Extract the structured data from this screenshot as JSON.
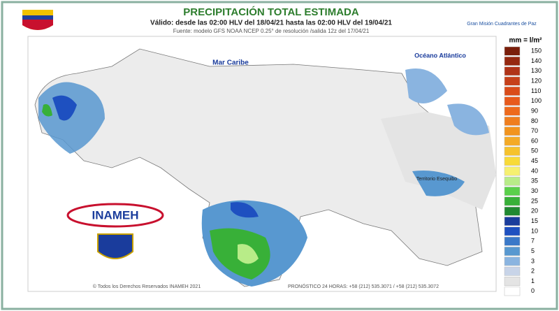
{
  "header": {
    "title": "PRECIPITACIÓN TOTAL ESTIMADA",
    "subtitle": "Válido: desde las 02:00 HLV del 18/04/21 hasta las 02:00 HLV del 19/04/21",
    "source": "Fuente: modelo GFS NOAA  NCEP 0.25° de resolución /salida 12z del 17/04/21",
    "partner": "Gran Misión Cuadrantes de Paz"
  },
  "map": {
    "labels": [
      "Mar Caribe",
      "Océano Atlántico",
      "Territorio Esequibo"
    ],
    "logo": "INAMEH"
  },
  "legend": {
    "title": "mm = l/m²",
    "items": [
      {
        "value": 150,
        "color": "#7a1e0a"
      },
      {
        "value": 140,
        "color": "#952810"
      },
      {
        "value": 130,
        "color": "#b03318"
      },
      {
        "value": 120,
        "color": "#c6401a"
      },
      {
        "value": 110,
        "color": "#da4c1a"
      },
      {
        "value": 100,
        "color": "#e85a1c"
      },
      {
        "value": 90,
        "color": "#ee6a1c"
      },
      {
        "value": 80,
        "color": "#f07e1e"
      },
      {
        "value": 70,
        "color": "#f2941e"
      },
      {
        "value": 60,
        "color": "#f4aa26"
      },
      {
        "value": 50,
        "color": "#f6c22c"
      },
      {
        "value": 45,
        "color": "#f8da38"
      },
      {
        "value": 40,
        "color": "#f6f070"
      },
      {
        "value": 35,
        "color": "#b8ec88"
      },
      {
        "value": 30,
        "color": "#5ad04a"
      },
      {
        "value": 25,
        "color": "#38b038"
      },
      {
        "value": 20,
        "color": "#208830"
      },
      {
        "value": 15,
        "color": "#1a3c9c"
      },
      {
        "value": 10,
        "color": "#1e50c0"
      },
      {
        "value": 7,
        "color": "#3a78c8"
      },
      {
        "value": 5,
        "color": "#5898d0"
      },
      {
        "value": 3,
        "color": "#8ab4e0"
      },
      {
        "value": 2,
        "color": "#c8d4e8"
      },
      {
        "value": 1,
        "color": "#e4e4e4"
      },
      {
        "value": 0,
        "color": "#ffffff"
      }
    ]
  },
  "footer": {
    "copyright": "© Todos los Derechos Reservados INAMEH 2021",
    "phone": "PRONÓSTICO 24 HORAS: +58 (212) 535.3071 / +58 (212) 535.3072"
  }
}
